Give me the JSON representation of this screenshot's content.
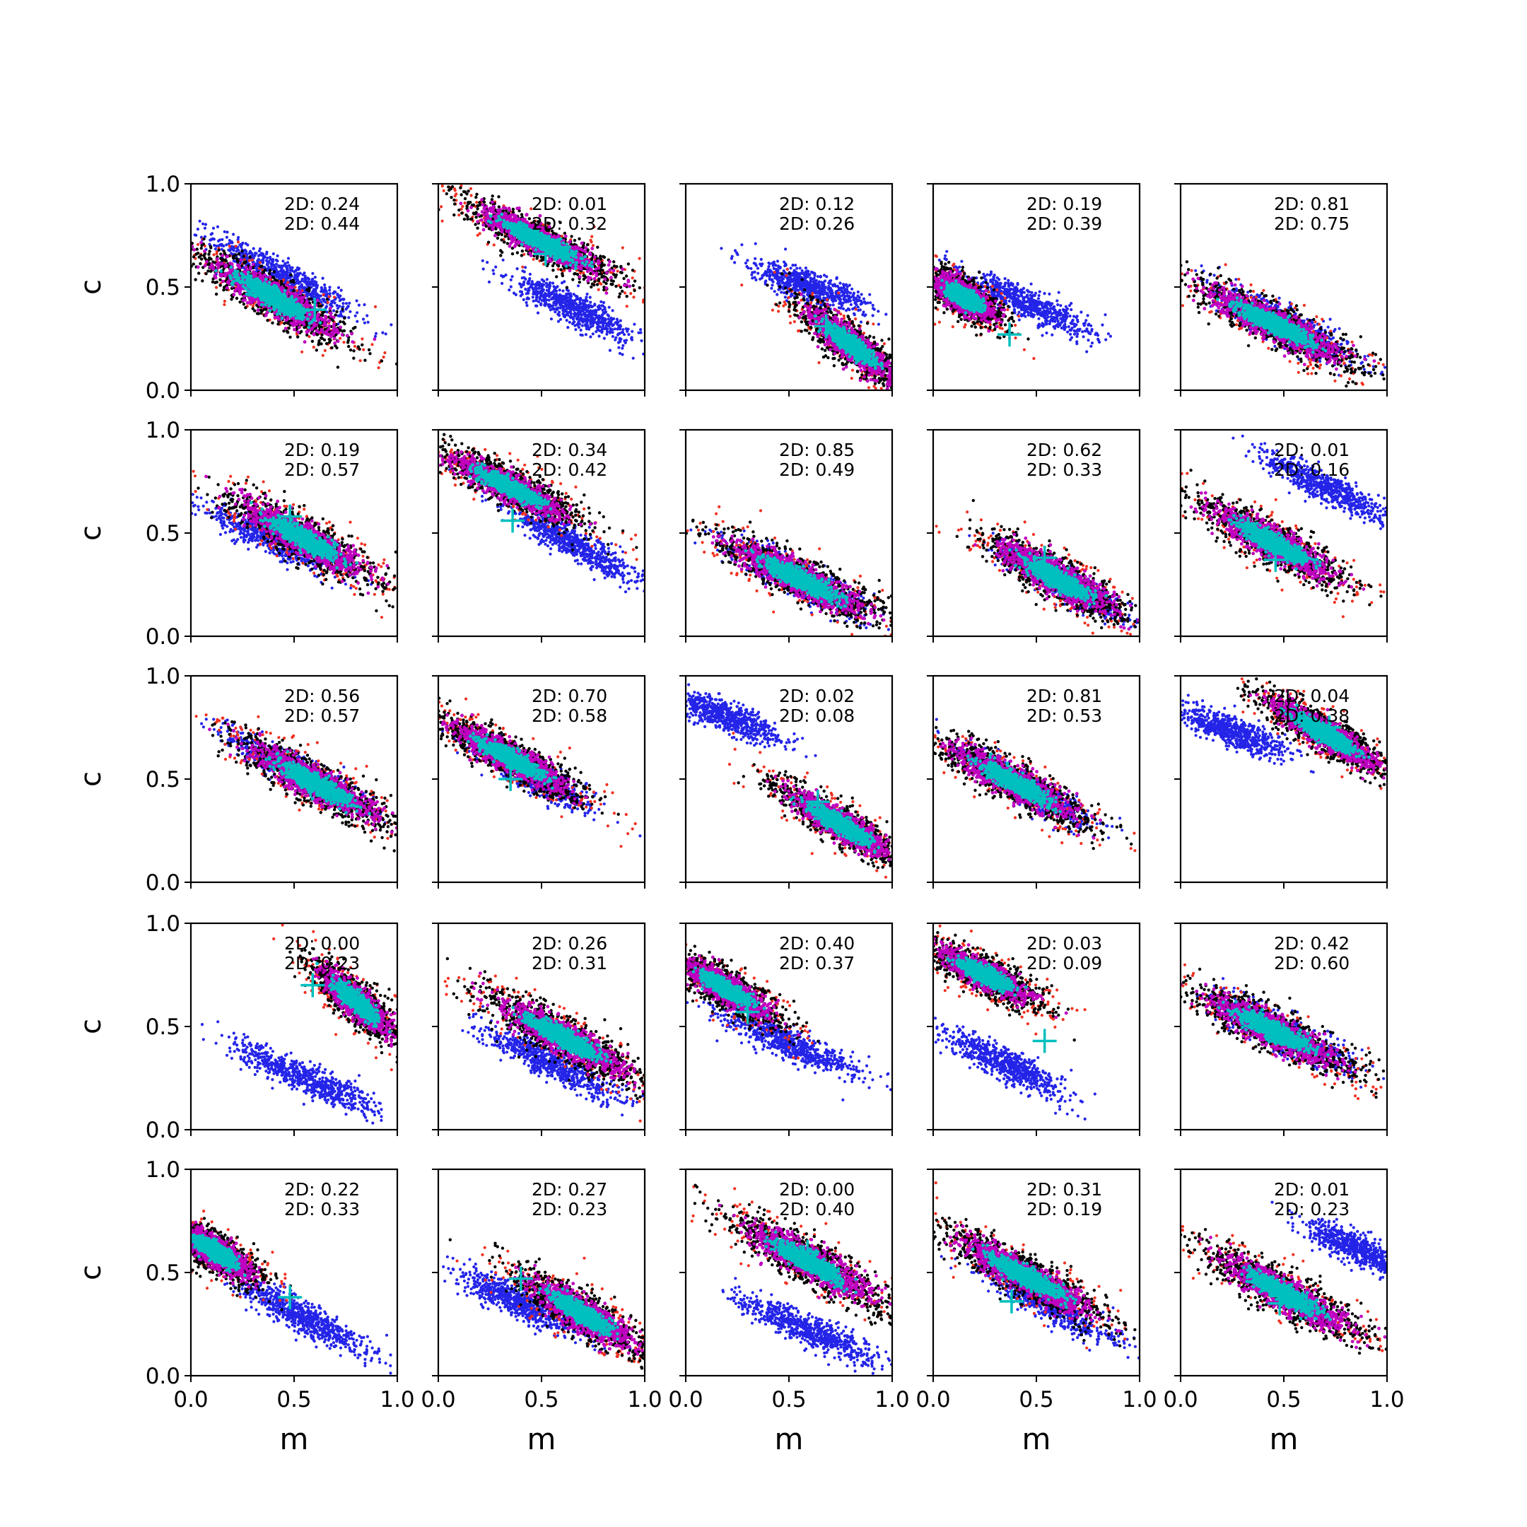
{
  "figure": {
    "rows": 5,
    "cols": 5,
    "xlabel": "m",
    "ylabel": "c",
    "xlim": [
      0,
      1
    ],
    "ylim": [
      0,
      1
    ],
    "x_ticks": [
      "0.0",
      "0.5",
      "1.0"
    ],
    "y_ticks": [
      "0.0",
      "0.5",
      "1.0"
    ],
    "colors": {
      "blue": "#2424e8",
      "red": "#f03020",
      "black": "#000000",
      "magenta": "#c000c0",
      "cyan": "#00bfbf"
    }
  },
  "chart_data": [
    {
      "type": "scatter",
      "row": 0,
      "col": 0,
      "stats": [
        "2D: 0.24",
        "2D: 0.44"
      ],
      "primary": {
        "center": [
          0.4,
          0.45
        ],
        "slope": -0.58,
        "len": 0.48,
        "width": 0.09
      },
      "blue": {
        "center": [
          0.45,
          0.55
        ],
        "slope": -0.55,
        "len": 0.45,
        "width": 0.07
      },
      "marker": [
        0.6,
        0.39
      ]
    },
    {
      "type": "scatter",
      "row": 0,
      "col": 1,
      "stats": [
        "2D: 0.01",
        "2D: 0.32"
      ],
      "primary": {
        "center": [
          0.5,
          0.72
        ],
        "slope": -0.5,
        "len": 0.48,
        "width": 0.08
      },
      "blue": {
        "center": [
          0.65,
          0.4
        ],
        "slope": -0.5,
        "len": 0.38,
        "width": 0.07
      },
      "marker": [
        0.52,
        0.66
      ]
    },
    {
      "type": "scatter",
      "row": 0,
      "col": 2,
      "stats": [
        "2D: 0.12",
        "2D: 0.26"
      ],
      "primary": {
        "center": [
          0.8,
          0.22
        ],
        "slope": -0.8,
        "len": 0.36,
        "width": 0.08
      },
      "blue": {
        "center": [
          0.6,
          0.5
        ],
        "slope": -0.35,
        "len": 0.35,
        "width": 0.07
      },
      "marker": [
        0.68,
        0.31
      ]
    },
    {
      "type": "scatter",
      "row": 0,
      "col": 3,
      "stats": [
        "2D: 0.19",
        "2D: 0.39"
      ],
      "primary": {
        "center": [
          0.15,
          0.45
        ],
        "slope": -0.6,
        "len": 0.25,
        "width": 0.08
      },
      "blue": {
        "center": [
          0.45,
          0.42
        ],
        "slope": -0.45,
        "len": 0.42,
        "width": 0.07
      },
      "marker": [
        0.37,
        0.27
      ]
    },
    {
      "type": "scatter",
      "row": 0,
      "col": 4,
      "stats": [
        "2D: 0.81",
        "2D: 0.75"
      ],
      "primary": {
        "center": [
          0.45,
          0.32
        ],
        "slope": -0.5,
        "len": 0.52,
        "width": 0.09
      },
      "blue": {
        "center": [
          0.5,
          0.32
        ],
        "slope": -0.5,
        "len": 0.45,
        "width": 0.08
      },
      "marker": null
    },
    {
      "type": "scatter",
      "row": 1,
      "col": 0,
      "stats": [
        "2D: 0.19",
        "2D: 0.57"
      ],
      "primary": {
        "center": [
          0.55,
          0.47
        ],
        "slope": -0.55,
        "len": 0.48,
        "width": 0.09
      },
      "blue": {
        "center": [
          0.4,
          0.47
        ],
        "slope": -0.45,
        "len": 0.42,
        "width": 0.07
      },
      "marker": [
        0.48,
        0.58
      ]
    },
    {
      "type": "scatter",
      "row": 1,
      "col": 1,
      "stats": [
        "2D: 0.34",
        "2D: 0.42"
      ],
      "primary": {
        "center": [
          0.35,
          0.72
        ],
        "slope": -0.5,
        "len": 0.45,
        "width": 0.08
      },
      "blue": {
        "center": [
          0.65,
          0.45
        ],
        "slope": -0.55,
        "len": 0.4,
        "width": 0.07
      },
      "marker": [
        0.36,
        0.56
      ]
    },
    {
      "type": "scatter",
      "row": 1,
      "col": 2,
      "stats": [
        "2D: 0.85",
        "2D: 0.49"
      ],
      "primary": {
        "center": [
          0.55,
          0.28
        ],
        "slope": -0.5,
        "len": 0.52,
        "width": 0.09
      },
      "blue": {
        "center": [
          0.55,
          0.28
        ],
        "slope": -0.5,
        "len": 0.45,
        "width": 0.08
      },
      "marker": null
    },
    {
      "type": "scatter",
      "row": 1,
      "col": 3,
      "stats": [
        "2D: 0.62",
        "2D: 0.33"
      ],
      "primary": {
        "center": [
          0.6,
          0.28
        ],
        "slope": -0.55,
        "len": 0.45,
        "width": 0.09
      },
      "blue": {
        "center": [
          0.65,
          0.25
        ],
        "slope": -0.55,
        "len": 0.38,
        "width": 0.07
      },
      "marker": [
        0.54,
        0.38
      ]
    },
    {
      "type": "scatter",
      "row": 1,
      "col": 4,
      "stats": [
        "2D: 0.01",
        "2D: 0.16"
      ],
      "primary": {
        "center": [
          0.45,
          0.45
        ],
        "slope": -0.55,
        "len": 0.48,
        "width": 0.09
      },
      "blue": {
        "center": [
          0.7,
          0.72
        ],
        "slope": -0.5,
        "len": 0.42,
        "width": 0.07
      },
      "marker": [
        0.46,
        0.37
      ]
    },
    {
      "type": "scatter",
      "row": 2,
      "col": 0,
      "stats": [
        "2D: 0.56",
        "2D: 0.57"
      ],
      "primary": {
        "center": [
          0.6,
          0.48
        ],
        "slope": -0.55,
        "len": 0.5,
        "width": 0.09
      },
      "blue": {
        "center": [
          0.5,
          0.55
        ],
        "slope": -0.5,
        "len": 0.42,
        "width": 0.07
      },
      "marker": [
        0.58,
        0.47
      ]
    },
    {
      "type": "scatter",
      "row": 2,
      "col": 1,
      "stats": [
        "2D: 0.70",
        "2D: 0.58"
      ],
      "primary": {
        "center": [
          0.35,
          0.6
        ],
        "slope": -0.55,
        "len": 0.45,
        "width": 0.08
      },
      "blue": {
        "center": [
          0.45,
          0.52
        ],
        "slope": -0.55,
        "len": 0.4,
        "width": 0.07
      },
      "marker": [
        0.35,
        0.5
      ]
    },
    {
      "type": "scatter",
      "row": 2,
      "col": 2,
      "stats": [
        "2D: 0.02",
        "2D: 0.08"
      ],
      "primary": {
        "center": [
          0.75,
          0.28
        ],
        "slope": -0.6,
        "len": 0.42,
        "width": 0.08
      },
      "blue": {
        "center": [
          0.2,
          0.8
        ],
        "slope": -0.4,
        "len": 0.35,
        "width": 0.07
      },
      "marker": [
        0.64,
        0.39
      ]
    },
    {
      "type": "scatter",
      "row": 2,
      "col": 3,
      "stats": [
        "2D: 0.81",
        "2D: 0.53"
      ],
      "primary": {
        "center": [
          0.4,
          0.48
        ],
        "slope": -0.55,
        "len": 0.48,
        "width": 0.09
      },
      "blue": {
        "center": [
          0.45,
          0.46
        ],
        "slope": -0.55,
        "len": 0.42,
        "width": 0.07
      },
      "marker": null
    },
    {
      "type": "scatter",
      "row": 2,
      "col": 4,
      "stats": [
        "2D: 0.04",
        "2D: 0.38"
      ],
      "primary": {
        "center": [
          0.7,
          0.72
        ],
        "slope": -0.6,
        "len": 0.42,
        "width": 0.08
      },
      "blue": {
        "center": [
          0.25,
          0.73
        ],
        "slope": -0.4,
        "len": 0.35,
        "width": 0.07
      },
      "marker": [
        0.72,
        0.75
      ]
    },
    {
      "type": "scatter",
      "row": 3,
      "col": 0,
      "stats": [
        "2D: 0.00",
        "2D: 0.23"
      ],
      "primary": {
        "center": [
          0.8,
          0.62
        ],
        "slope": -0.9,
        "len": 0.32,
        "width": 0.08
      },
      "blue": {
        "center": [
          0.55,
          0.25
        ],
        "slope": -0.45,
        "len": 0.45,
        "width": 0.07
      },
      "marker": [
        0.59,
        0.7
      ]
    },
    {
      "type": "scatter",
      "row": 3,
      "col": 1,
      "stats": [
        "2D: 0.26",
        "2D: 0.31"
      ],
      "primary": {
        "center": [
          0.6,
          0.45
        ],
        "slope": -0.55,
        "len": 0.5,
        "width": 0.09
      },
      "blue": {
        "center": [
          0.55,
          0.32
        ],
        "slope": -0.5,
        "len": 0.45,
        "width": 0.07
      },
      "marker": null
    },
    {
      "type": "scatter",
      "row": 3,
      "col": 2,
      "stats": [
        "2D: 0.40",
        "2D: 0.37"
      ],
      "primary": {
        "center": [
          0.2,
          0.68
        ],
        "slope": -0.6,
        "len": 0.35,
        "width": 0.08
      },
      "blue": {
        "center": [
          0.5,
          0.42
        ],
        "slope": -0.45,
        "len": 0.42,
        "width": 0.07
      },
      "marker": [
        0.3,
        0.57
      ]
    },
    {
      "type": "scatter",
      "row": 3,
      "col": 3,
      "stats": [
        "2D: 0.03",
        "2D: 0.09"
      ],
      "primary": {
        "center": [
          0.25,
          0.75
        ],
        "slope": -0.5,
        "len": 0.35,
        "width": 0.08
      },
      "blue": {
        "center": [
          0.35,
          0.32
        ],
        "slope": -0.5,
        "len": 0.4,
        "width": 0.07
      },
      "marker": [
        0.54,
        0.43
      ]
    },
    {
      "type": "scatter",
      "row": 3,
      "col": 4,
      "stats": [
        "2D: 0.42",
        "2D: 0.60"
      ],
      "primary": {
        "center": [
          0.45,
          0.48
        ],
        "slope": -0.5,
        "len": 0.52,
        "width": 0.09
      },
      "blue": {
        "center": [
          0.5,
          0.47
        ],
        "slope": -0.5,
        "len": 0.45,
        "width": 0.08
      },
      "marker": null
    },
    {
      "type": "scatter",
      "row": 4,
      "col": 0,
      "stats": [
        "2D: 0.22",
        "2D: 0.33"
      ],
      "primary": {
        "center": [
          0.12,
          0.6
        ],
        "slope": -0.65,
        "len": 0.3,
        "width": 0.08
      },
      "blue": {
        "center": [
          0.55,
          0.28
        ],
        "slope": -0.55,
        "len": 0.42,
        "width": 0.07
      },
      "marker": [
        0.48,
        0.38
      ]
    },
    {
      "type": "scatter",
      "row": 4,
      "col": 1,
      "stats": [
        "2D: 0.27",
        "2D: 0.23"
      ],
      "primary": {
        "center": [
          0.7,
          0.3
        ],
        "slope": -0.6,
        "len": 0.42,
        "width": 0.09
      },
      "blue": {
        "center": [
          0.4,
          0.35
        ],
        "slope": -0.45,
        "len": 0.42,
        "width": 0.07
      },
      "marker": [
        0.4,
        0.47
      ]
    },
    {
      "type": "scatter",
      "row": 4,
      "col": 2,
      "stats": [
        "2D: 0.00",
        "2D: 0.40"
      ],
      "primary": {
        "center": [
          0.6,
          0.55
        ],
        "slope": -0.55,
        "len": 0.5,
        "width": 0.09
      },
      "blue": {
        "center": [
          0.6,
          0.22
        ],
        "slope": -0.45,
        "len": 0.45,
        "width": 0.07
      },
      "marker": [
        0.59,
        0.6
      ]
    },
    {
      "type": "scatter",
      "row": 4,
      "col": 3,
      "stats": [
        "2D: 0.31",
        "2D: 0.19"
      ],
      "primary": {
        "center": [
          0.45,
          0.48
        ],
        "slope": -0.55,
        "len": 0.52,
        "width": 0.09
      },
      "blue": {
        "center": [
          0.55,
          0.35
        ],
        "slope": -0.55,
        "len": 0.45,
        "width": 0.07
      },
      "marker": [
        0.38,
        0.36
      ]
    },
    {
      "type": "scatter",
      "row": 4,
      "col": 4,
      "stats": [
        "2D: 0.01",
        "2D: 0.23"
      ],
      "primary": {
        "center": [
          0.5,
          0.4
        ],
        "slope": -0.55,
        "len": 0.5,
        "width": 0.09
      },
      "blue": {
        "center": [
          0.85,
          0.62
        ],
        "slope": -0.5,
        "len": 0.35,
        "width": 0.07
      },
      "marker": [
        0.48,
        0.35
      ]
    }
  ]
}
